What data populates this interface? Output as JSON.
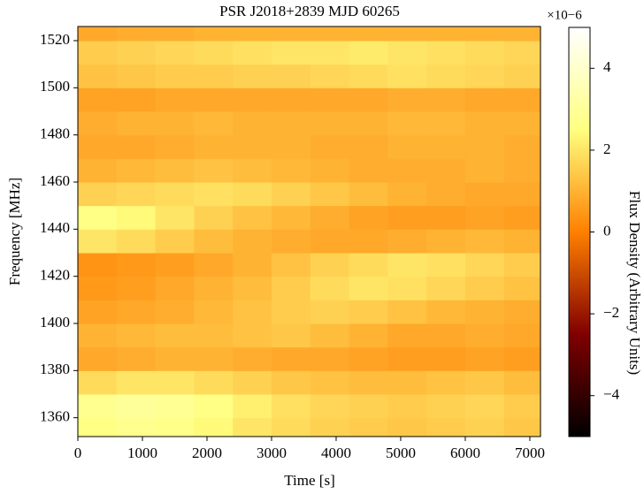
{
  "chart_data": {
    "type": "heatmap",
    "title": "PSR J2018+2839 MJD 60265",
    "x_label": "Time [s]",
    "y_label": "Frequency [MHz]",
    "colorbar_label": "Flux Density (Arbitrary Units)",
    "colorbar_offset_label": "×10−6",
    "colormap": "afmhot",
    "xlim": [
      0,
      7165
    ],
    "ylim": [
      1352,
      1526
    ],
    "clim": [
      -5,
      5
    ],
    "xticks": [
      0,
      1000,
      2000,
      3000,
      4000,
      5000,
      6000,
      7000
    ],
    "yticks": [
      1360,
      1380,
      1400,
      1420,
      1440,
      1460,
      1480,
      1500,
      1520
    ],
    "cticks": [
      {
        "value": -4,
        "label": "−4"
      },
      {
        "value": -2,
        "label": "−2"
      },
      0,
      2,
      4
    ],
    "x_edges": [
      0,
      600,
      1200,
      1800,
      2400,
      3000,
      3600,
      4200,
      4800,
      5400,
      6000,
      6600,
      7165
    ],
    "y_edges": [
      1352,
      1360,
      1370,
      1380,
      1390,
      1400,
      1410,
      1420,
      1430,
      1440,
      1450,
      1460,
      1470,
      1480,
      1490,
      1500,
      1510,
      1520,
      1526
    ],
    "z": [
      [
        2.6,
        2.8,
        2.7,
        2.4,
        2.0,
        1.8,
        1.6,
        1.5,
        1.4,
        1.5,
        1.6,
        1.4
      ],
      [
        2.8,
        3.0,
        2.9,
        2.6,
        2.2,
        1.9,
        1.7,
        1.6,
        1.5,
        1.6,
        1.7,
        1.5
      ],
      [
        1.8,
        2.0,
        2.0,
        1.8,
        1.6,
        1.4,
        1.3,
        1.2,
        1.2,
        1.3,
        1.4,
        1.2
      ],
      [
        0.8,
        0.9,
        1.0,
        1.0,
        0.9,
        0.8,
        0.8,
        0.7,
        0.6,
        0.6,
        0.7,
        0.6
      ],
      [
        1.0,
        1.1,
        1.2,
        1.2,
        1.3,
        1.4,
        1.2,
        1.0,
        0.8,
        0.8,
        0.9,
        0.8
      ],
      [
        0.7,
        0.8,
        0.9,
        1.1,
        1.3,
        1.5,
        1.6,
        1.5,
        1.3,
        1.1,
        1.0,
        0.9
      ],
      [
        0.5,
        0.6,
        0.8,
        1.0,
        1.2,
        1.5,
        1.8,
        2.0,
        1.9,
        1.7,
        1.5,
        1.3
      ],
      [
        0.4,
        0.5,
        0.6,
        0.8,
        1.0,
        1.3,
        1.6,
        1.8,
        2.0,
        1.9,
        1.7,
        1.5
      ],
      [
        2.0,
        1.8,
        1.5,
        1.2,
        1.0,
        0.9,
        0.8,
        0.8,
        0.9,
        1.0,
        1.1,
        1.0
      ],
      [
        2.6,
        2.4,
        2.0,
        1.6,
        1.3,
        1.1,
        0.9,
        0.7,
        0.6,
        0.6,
        0.7,
        0.6
      ],
      [
        1.6,
        1.7,
        1.8,
        1.9,
        1.8,
        1.6,
        1.4,
        1.2,
        1.0,
        0.9,
        0.8,
        0.8
      ],
      [
        1.0,
        1.1,
        1.2,
        1.3,
        1.2,
        1.1,
        1.0,
        0.9,
        0.9,
        0.9,
        1.0,
        0.9
      ],
      [
        0.8,
        0.8,
        0.9,
        1.0,
        1.0,
        1.0,
        0.9,
        0.9,
        1.0,
        1.0,
        1.0,
        0.9
      ],
      [
        0.9,
        1.0,
        1.0,
        1.1,
        1.0,
        1.0,
        1.0,
        1.0,
        1.1,
        1.1,
        1.0,
        1.0
      ],
      [
        0.7,
        0.7,
        0.8,
        0.8,
        0.8,
        0.8,
        0.8,
        0.8,
        0.9,
        0.9,
        0.8,
        0.8
      ],
      [
        1.3,
        1.4,
        1.5,
        1.5,
        1.6,
        1.6,
        1.7,
        1.8,
        1.9,
        1.8,
        1.7,
        1.6
      ],
      [
        1.5,
        1.6,
        1.7,
        1.8,
        1.9,
        2.0,
        2.0,
        2.1,
        2.0,
        1.9,
        1.8,
        1.7
      ],
      [
        0.8,
        0.9,
        0.9,
        1.0,
        1.0,
        1.0,
        1.0,
        1.0,
        1.0,
        1.0,
        1.0,
        1.0
      ]
    ]
  }
}
